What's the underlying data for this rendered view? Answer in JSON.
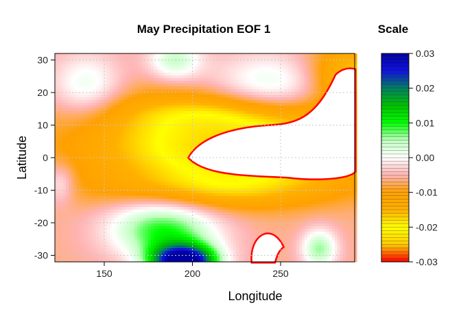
{
  "chart_data": {
    "type": "heatmap",
    "title": "May Precipitation EOF 1",
    "xlabel": "Longitude",
    "ylabel": "Latitude",
    "xlim": [
      122,
      292
    ],
    "ylim": [
      -32,
      32
    ],
    "x_ticks": [
      150,
      200,
      250
    ],
    "y_ticks": [
      30,
      20,
      10,
      0,
      -10,
      -20,
      -30
    ],
    "grid": true,
    "colorbar": {
      "title": "Scale",
      "range": [
        -0.03,
        0.03
      ],
      "ticks": [
        "0.03",
        "0.02",
        "0.01",
        "0.00",
        "-0.01",
        "-0.02",
        "-0.03"
      ],
      "tick_values": [
        0.03,
        0.02,
        0.01,
        0.0,
        -0.01,
        -0.02,
        -0.03
      ]
    },
    "color_stops": [
      {
        "v": -0.03,
        "c": "#ff0000"
      },
      {
        "v": -0.025,
        "c": "#ffcc00"
      },
      {
        "v": -0.02,
        "c": "#ffff00"
      },
      {
        "v": -0.015,
        "c": "#ffb000"
      },
      {
        "v": -0.01,
        "c": "#ffa000"
      },
      {
        "v": -0.005,
        "c": "#ffb4b4"
      },
      {
        "v": 0.0,
        "c": "#ffffff"
      },
      {
        "v": 0.005,
        "c": "#bfffbf"
      },
      {
        "v": 0.01,
        "c": "#00ff00"
      },
      {
        "v": 0.015,
        "c": "#00c000"
      },
      {
        "v": 0.02,
        "c": "#008060"
      },
      {
        "v": 0.025,
        "c": "#1010e0"
      },
      {
        "v": 0.03,
        "c": "#0000a0"
      }
    ]
  }
}
